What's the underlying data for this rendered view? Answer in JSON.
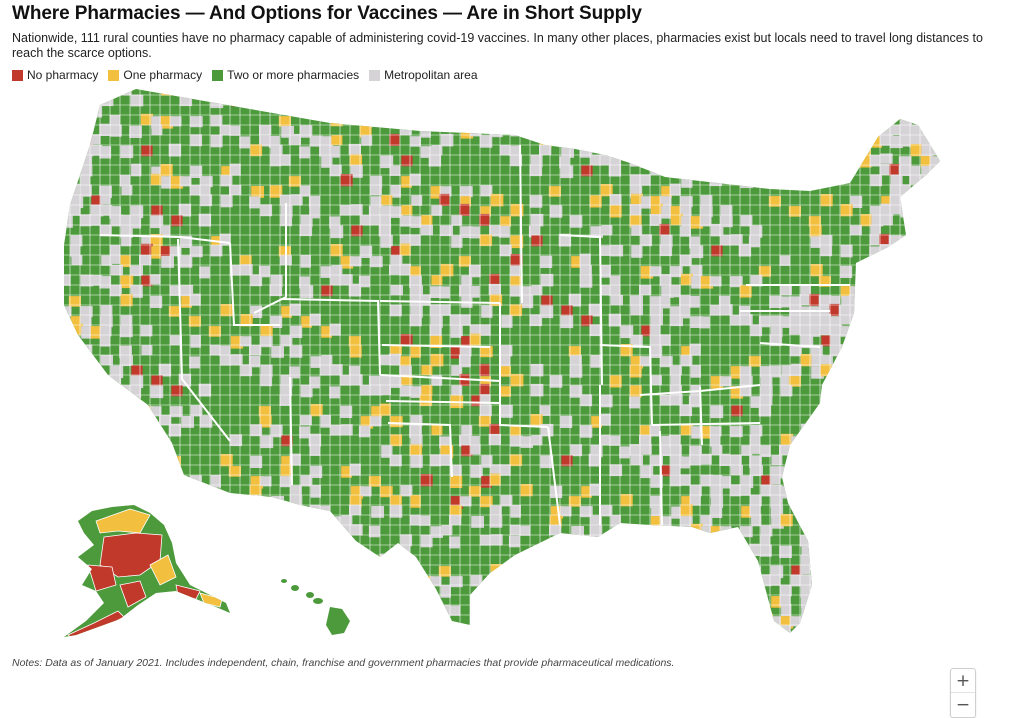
{
  "header": {
    "title": "Where Pharmacies — And Options for Vaccines — Are in Short Supply",
    "subtitle": "Nationwide, 111 rural counties have no pharmacy capable of administering covid-19 vaccines. In many other places, pharmacies exist but locals need to travel long distances to reach the scarce options."
  },
  "legend": [
    {
      "label": "No pharmacy",
      "color": "#c0392b"
    },
    {
      "label": "One pharmacy",
      "color": "#f3bf3f"
    },
    {
      "label": "Two or more pharmacies",
      "color": "#4c9a3b"
    },
    {
      "label": "Metropolitan area",
      "color": "#d6d3d7"
    }
  ],
  "map": {
    "colors": {
      "none": "#c0392b",
      "one": "#f3bf3f",
      "two_plus": "#4c9a3b",
      "metro": "#d6d3d7",
      "border": "#ffffff"
    },
    "regions": [
      "contiguous-us",
      "alaska",
      "hawaii"
    ]
  },
  "zoom": {
    "in_label": "+",
    "out_label": "−"
  },
  "footer": {
    "notes": "Notes: Data as of January 2021. Includes independent, chain, franchise and government pharmacies that provide pharmaceutical medications."
  }
}
